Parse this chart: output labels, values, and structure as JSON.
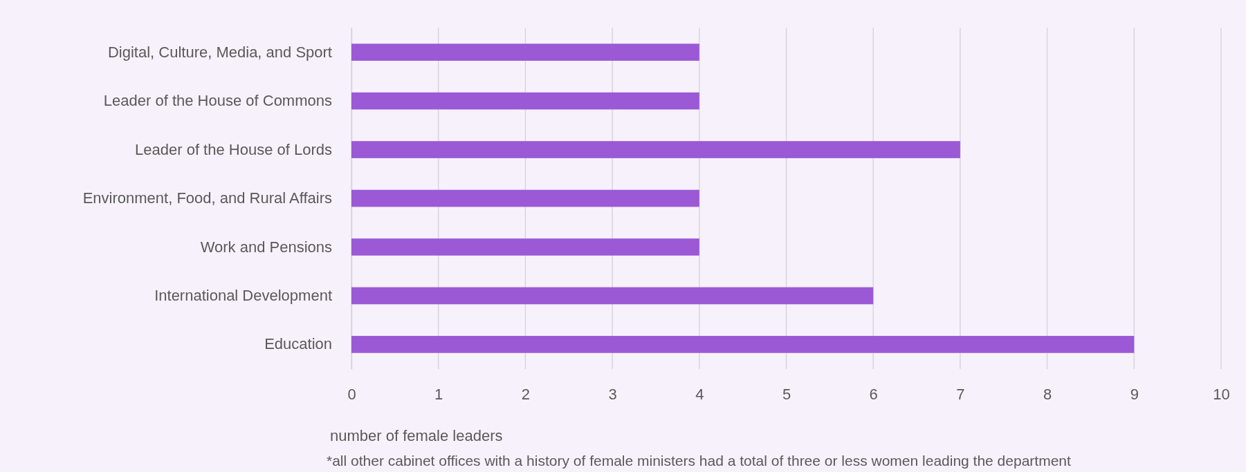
{
  "chart_data": {
    "type": "bar",
    "orientation": "horizontal",
    "categories": [
      "Digital, Culture, Media, and Sport",
      "Leader of the House of Commons",
      "Leader of the House of Lords",
      "Environment, Food, and Rural Affairs",
      "Work and Pensions",
      "International Development",
      "Education"
    ],
    "values": [
      4,
      4,
      7,
      4,
      4,
      6,
      9
    ],
    "color": "#9b59d6",
    "xlim": [
      0,
      10
    ],
    "xticks": [
      0,
      1,
      2,
      3,
      4,
      5,
      6,
      7,
      8,
      9,
      10
    ],
    "grid": "x",
    "xlabel": "number of female leaders",
    "annotations": [
      "*all other cabinet offices with a history of female ministers had a total of three or less women leading the department"
    ]
  }
}
